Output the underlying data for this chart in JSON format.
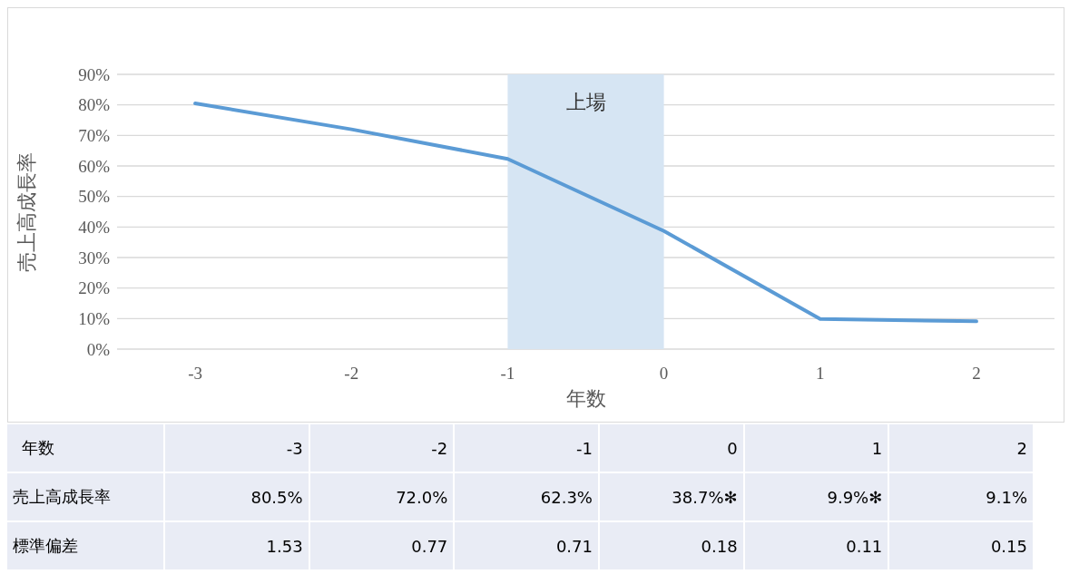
{
  "chart_data": {
    "type": "line",
    "xlabel": "年数",
    "ylabel": "売上高成長率",
    "x": [
      -3,
      -2,
      -1,
      0,
      1,
      2
    ],
    "xlim": [
      -3.5,
      2.5
    ],
    "xticks": [
      -3,
      -2,
      -1,
      0,
      1,
      2
    ],
    "ylim": [
      0,
      90
    ],
    "yticks": [
      {
        "value": 0,
        "label": "0%"
      },
      {
        "value": 10,
        "label": "10%"
      },
      {
        "value": 20,
        "label": "20%"
      },
      {
        "value": 30,
        "label": "30%"
      },
      {
        "value": 40,
        "label": "40%"
      },
      {
        "value": 50,
        "label": "50%"
      },
      {
        "value": 60,
        "label": "60%"
      },
      {
        "value": 70,
        "label": "70%"
      },
      {
        "value": 80,
        "label": "80%"
      },
      {
        "value": 90,
        "label": "90%"
      }
    ],
    "grid": "y",
    "marker": "none",
    "line_style": "solid",
    "series": [
      {
        "color": "#5b9bd5",
        "values": [
          80.5,
          72.0,
          62.3,
          38.7,
          9.9,
          9.1
        ]
      }
    ],
    "bands": [
      {
        "axis": "x",
        "from": -1,
        "to": 0,
        "label": "上場",
        "color": "#d6e5f3"
      }
    ],
    "annotations": [
      "年数",
      "-3",
      "-2",
      "-1",
      "0",
      "1",
      "2",
      "売上高成長率",
      "80.5%",
      "72.0%",
      "62.3%",
      "38.7%✻",
      "9.9%✻",
      "9.1%",
      "標準偏差",
      "1.53",
      "0.77",
      "0.71",
      "0.18",
      "0.11",
      "0.15"
    ]
  }
}
